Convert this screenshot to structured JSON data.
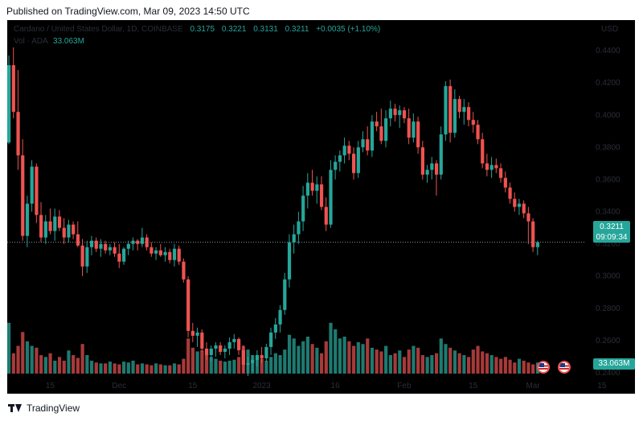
{
  "header": {
    "published": "Published on TradingView.com, Mar 09, 2023 14:50 UTC"
  },
  "legend": {
    "symbol": "Cardano / United States Dollar, 1D, COINBASE",
    "open": "0.3175",
    "high": "0.3221",
    "low": "0.3131",
    "close": "0.3211",
    "change": "+0.0035 (+1.10%)",
    "vol_label": "Vol · ADA",
    "vol_value": "33.063M"
  },
  "price_axis": {
    "currency": "USD",
    "labels": [
      "0.4400",
      "0.4200",
      "0.4000",
      "0.3800",
      "0.3600",
      "0.3400",
      "0.3200",
      "0.3000",
      "0.2800",
      "0.2600",
      "0.2400"
    ]
  },
  "last_price": {
    "value": "0.3211",
    "countdown": "09:09:34"
  },
  "volume_tag": "33.063M",
  "time_axis": {
    "labels": [
      "15",
      "Dec",
      "15",
      "2023",
      "16",
      "Feb",
      "15",
      "Mar",
      "15"
    ]
  },
  "footer": {
    "brand": "TradingView"
  },
  "colors": {
    "up": "#26a69a",
    "down": "#ef5350",
    "up_volume": "#1e7a70",
    "down_volume": "#a83a3a",
    "background": "#000000"
  },
  "chart_data": {
    "type": "candlestick",
    "title": "Cardano / United States Dollar, 1D, COINBASE",
    "ylim": [
      0.237,
      0.456
    ],
    "current_price": 0.3211,
    "candles": [
      {
        "o": 0.383,
        "h": 0.437,
        "l": 0.382,
        "c": 0.431
      },
      {
        "o": 0.431,
        "h": 0.442,
        "l": 0.398,
        "c": 0.402
      },
      {
        "o": 0.402,
        "h": 0.428,
        "l": 0.366,
        "c": 0.375
      },
      {
        "o": 0.375,
        "h": 0.385,
        "l": 0.322,
        "c": 0.325
      },
      {
        "o": 0.325,
        "h": 0.35,
        "l": 0.318,
        "c": 0.345
      },
      {
        "o": 0.345,
        "h": 0.372,
        "l": 0.34,
        "c": 0.368
      },
      {
        "o": 0.368,
        "h": 0.37,
        "l": 0.333,
        "c": 0.338
      },
      {
        "o": 0.338,
        "h": 0.346,
        "l": 0.321,
        "c": 0.324
      },
      {
        "o": 0.324,
        "h": 0.338,
        "l": 0.32,
        "c": 0.334
      },
      {
        "o": 0.334,
        "h": 0.342,
        "l": 0.326,
        "c": 0.328
      },
      {
        "o": 0.328,
        "h": 0.342,
        "l": 0.322,
        "c": 0.337
      },
      {
        "o": 0.337,
        "h": 0.341,
        "l": 0.328,
        "c": 0.33
      },
      {
        "o": 0.33,
        "h": 0.336,
        "l": 0.32,
        "c": 0.324
      },
      {
        "o": 0.324,
        "h": 0.335,
        "l": 0.321,
        "c": 0.332
      },
      {
        "o": 0.332,
        "h": 0.334,
        "l": 0.323,
        "c": 0.326
      },
      {
        "o": 0.326,
        "h": 0.334,
        "l": 0.318,
        "c": 0.319
      },
      {
        "o": 0.319,
        "h": 0.323,
        "l": 0.3,
        "c": 0.306
      },
      {
        "o": 0.306,
        "h": 0.322,
        "l": 0.302,
        "c": 0.318
      },
      {
        "o": 0.318,
        "h": 0.325,
        "l": 0.313,
        "c": 0.322
      },
      {
        "o": 0.322,
        "h": 0.324,
        "l": 0.315,
        "c": 0.317
      },
      {
        "o": 0.317,
        "h": 0.323,
        "l": 0.312,
        "c": 0.32
      },
      {
        "o": 0.32,
        "h": 0.322,
        "l": 0.314,
        "c": 0.316
      },
      {
        "o": 0.316,
        "h": 0.32,
        "l": 0.313,
        "c": 0.318
      },
      {
        "o": 0.318,
        "h": 0.321,
        "l": 0.312,
        "c": 0.314
      },
      {
        "o": 0.314,
        "h": 0.32,
        "l": 0.305,
        "c": 0.309
      },
      {
        "o": 0.309,
        "h": 0.318,
        "l": 0.307,
        "c": 0.317
      },
      {
        "o": 0.317,
        "h": 0.322,
        "l": 0.313,
        "c": 0.32
      },
      {
        "o": 0.32,
        "h": 0.324,
        "l": 0.316,
        "c": 0.322
      },
      {
        "o": 0.322,
        "h": 0.323,
        "l": 0.316,
        "c": 0.32
      },
      {
        "o": 0.32,
        "h": 0.33,
        "l": 0.318,
        "c": 0.324
      },
      {
        "o": 0.324,
        "h": 0.326,
        "l": 0.316,
        "c": 0.318
      },
      {
        "o": 0.318,
        "h": 0.321,
        "l": 0.312,
        "c": 0.314
      },
      {
        "o": 0.314,
        "h": 0.318,
        "l": 0.31,
        "c": 0.316
      },
      {
        "o": 0.316,
        "h": 0.32,
        "l": 0.312,
        "c": 0.313
      },
      {
        "o": 0.313,
        "h": 0.318,
        "l": 0.309,
        "c": 0.315
      },
      {
        "o": 0.315,
        "h": 0.317,
        "l": 0.308,
        "c": 0.31
      },
      {
        "o": 0.31,
        "h": 0.32,
        "l": 0.306,
        "c": 0.317
      },
      {
        "o": 0.317,
        "h": 0.319,
        "l": 0.307,
        "c": 0.309
      },
      {
        "o": 0.309,
        "h": 0.311,
        "l": 0.296,
        "c": 0.298
      },
      {
        "o": 0.298,
        "h": 0.3,
        "l": 0.262,
        "c": 0.266
      },
      {
        "o": 0.266,
        "h": 0.271,
        "l": 0.259,
        "c": 0.263
      },
      {
        "o": 0.263,
        "h": 0.268,
        "l": 0.256,
        "c": 0.265
      },
      {
        "o": 0.265,
        "h": 0.267,
        "l": 0.253,
        "c": 0.255
      },
      {
        "o": 0.255,
        "h": 0.259,
        "l": 0.248,
        "c": 0.251
      },
      {
        "o": 0.251,
        "h": 0.257,
        "l": 0.247,
        "c": 0.255
      },
      {
        "o": 0.255,
        "h": 0.259,
        "l": 0.25,
        "c": 0.257
      },
      {
        "o": 0.257,
        "h": 0.259,
        "l": 0.251,
        "c": 0.253
      },
      {
        "o": 0.253,
        "h": 0.257,
        "l": 0.249,
        "c": 0.255
      },
      {
        "o": 0.255,
        "h": 0.262,
        "l": 0.251,
        "c": 0.259
      },
      {
        "o": 0.259,
        "h": 0.264,
        "l": 0.255,
        "c": 0.261
      },
      {
        "o": 0.261,
        "h": 0.262,
        "l": 0.251,
        "c": 0.254
      },
      {
        "o": 0.254,
        "h": 0.257,
        "l": 0.24,
        "c": 0.245
      },
      {
        "o": 0.245,
        "h": 0.25,
        "l": 0.238,
        "c": 0.246
      },
      {
        "o": 0.246,
        "h": 0.251,
        "l": 0.241,
        "c": 0.248
      },
      {
        "o": 0.248,
        "h": 0.254,
        "l": 0.244,
        "c": 0.251
      },
      {
        "o": 0.251,
        "h": 0.256,
        "l": 0.246,
        "c": 0.249
      },
      {
        "o": 0.249,
        "h": 0.258,
        "l": 0.247,
        "c": 0.256
      },
      {
        "o": 0.256,
        "h": 0.268,
        "l": 0.251,
        "c": 0.265
      },
      {
        "o": 0.265,
        "h": 0.274,
        "l": 0.261,
        "c": 0.27
      },
      {
        "o": 0.27,
        "h": 0.282,
        "l": 0.265,
        "c": 0.279
      },
      {
        "o": 0.279,
        "h": 0.302,
        "l": 0.276,
        "c": 0.298
      },
      {
        "o": 0.298,
        "h": 0.326,
        "l": 0.293,
        "c": 0.321
      },
      {
        "o": 0.321,
        "h": 0.332,
        "l": 0.314,
        "c": 0.326
      },
      {
        "o": 0.326,
        "h": 0.34,
        "l": 0.32,
        "c": 0.334
      },
      {
        "o": 0.334,
        "h": 0.356,
        "l": 0.328,
        "c": 0.35
      },
      {
        "o": 0.35,
        "h": 0.364,
        "l": 0.342,
        "c": 0.358
      },
      {
        "o": 0.358,
        "h": 0.366,
        "l": 0.35,
        "c": 0.353
      },
      {
        "o": 0.353,
        "h": 0.362,
        "l": 0.345,
        "c": 0.357
      },
      {
        "o": 0.357,
        "h": 0.362,
        "l": 0.341,
        "c": 0.343
      },
      {
        "o": 0.343,
        "h": 0.349,
        "l": 0.328,
        "c": 0.332
      },
      {
        "o": 0.332,
        "h": 0.372,
        "l": 0.33,
        "c": 0.366
      },
      {
        "o": 0.366,
        "h": 0.375,
        "l": 0.36,
        "c": 0.371
      },
      {
        "o": 0.371,
        "h": 0.378,
        "l": 0.365,
        "c": 0.375
      },
      {
        "o": 0.375,
        "h": 0.386,
        "l": 0.37,
        "c": 0.381
      },
      {
        "o": 0.381,
        "h": 0.384,
        "l": 0.372,
        "c": 0.376
      },
      {
        "o": 0.376,
        "h": 0.38,
        "l": 0.36,
        "c": 0.364
      },
      {
        "o": 0.364,
        "h": 0.384,
        "l": 0.361,
        "c": 0.38
      },
      {
        "o": 0.38,
        "h": 0.39,
        "l": 0.377,
        "c": 0.385
      },
      {
        "o": 0.385,
        "h": 0.393,
        "l": 0.375,
        "c": 0.378
      },
      {
        "o": 0.378,
        "h": 0.4,
        "l": 0.374,
        "c": 0.396
      },
      {
        "o": 0.396,
        "h": 0.402,
        "l": 0.39,
        "c": 0.393
      },
      {
        "o": 0.393,
        "h": 0.404,
        "l": 0.382,
        "c": 0.384
      },
      {
        "o": 0.384,
        "h": 0.403,
        "l": 0.38,
        "c": 0.398
      },
      {
        "o": 0.398,
        "h": 0.409,
        "l": 0.393,
        "c": 0.404
      },
      {
        "o": 0.404,
        "h": 0.407,
        "l": 0.396,
        "c": 0.4
      },
      {
        "o": 0.4,
        "h": 0.406,
        "l": 0.392,
        "c": 0.403
      },
      {
        "o": 0.403,
        "h": 0.405,
        "l": 0.395,
        "c": 0.398
      },
      {
        "o": 0.398,
        "h": 0.404,
        "l": 0.382,
        "c": 0.386
      },
      {
        "o": 0.386,
        "h": 0.401,
        "l": 0.383,
        "c": 0.396
      },
      {
        "o": 0.396,
        "h": 0.399,
        "l": 0.376,
        "c": 0.38
      },
      {
        "o": 0.38,
        "h": 0.384,
        "l": 0.36,
        "c": 0.363
      },
      {
        "o": 0.363,
        "h": 0.369,
        "l": 0.358,
        "c": 0.366
      },
      {
        "o": 0.366,
        "h": 0.374,
        "l": 0.36,
        "c": 0.37
      },
      {
        "o": 0.37,
        "h": 0.372,
        "l": 0.35,
        "c": 0.363
      },
      {
        "o": 0.363,
        "h": 0.393,
        "l": 0.36,
        "c": 0.388
      },
      {
        "o": 0.388,
        "h": 0.421,
        "l": 0.384,
        "c": 0.418
      },
      {
        "o": 0.418,
        "h": 0.422,
        "l": 0.383,
        "c": 0.389
      },
      {
        "o": 0.389,
        "h": 0.416,
        "l": 0.386,
        "c": 0.41
      },
      {
        "o": 0.41,
        "h": 0.412,
        "l": 0.398,
        "c": 0.402
      },
      {
        "o": 0.402,
        "h": 0.41,
        "l": 0.394,
        "c": 0.405
      },
      {
        "o": 0.405,
        "h": 0.408,
        "l": 0.393,
        "c": 0.397
      },
      {
        "o": 0.397,
        "h": 0.402,
        "l": 0.389,
        "c": 0.394
      },
      {
        "o": 0.394,
        "h": 0.397,
        "l": 0.382,
        "c": 0.385
      },
      {
        "o": 0.385,
        "h": 0.389,
        "l": 0.367,
        "c": 0.37
      },
      {
        "o": 0.37,
        "h": 0.376,
        "l": 0.362,
        "c": 0.366
      },
      {
        "o": 0.366,
        "h": 0.374,
        "l": 0.361,
        "c": 0.369
      },
      {
        "o": 0.369,
        "h": 0.373,
        "l": 0.364,
        "c": 0.367
      },
      {
        "o": 0.367,
        "h": 0.37,
        "l": 0.358,
        "c": 0.361
      },
      {
        "o": 0.361,
        "h": 0.365,
        "l": 0.352,
        "c": 0.355
      },
      {
        "o": 0.355,
        "h": 0.358,
        "l": 0.345,
        "c": 0.348
      },
      {
        "o": 0.348,
        "h": 0.352,
        "l": 0.34,
        "c": 0.343
      },
      {
        "o": 0.343,
        "h": 0.348,
        "l": 0.338,
        "c": 0.345
      },
      {
        "o": 0.345,
        "h": 0.347,
        "l": 0.336,
        "c": 0.339
      },
      {
        "o": 0.339,
        "h": 0.343,
        "l": 0.32,
        "c": 0.334
      },
      {
        "o": 0.334,
        "h": 0.336,
        "l": 0.315,
        "c": 0.318
      },
      {
        "o": 0.318,
        "h": 0.322,
        "l": 0.313,
        "c": 0.321
      }
    ],
    "volume_heights": [
      0.55,
      0.22,
      0.3,
      0.45,
      0.35,
      0.3,
      0.28,
      0.2,
      0.18,
      0.22,
      0.14,
      0.18,
      0.14,
      0.25,
      0.2,
      0.17,
      0.32,
      0.2,
      0.14,
      0.12,
      0.11,
      0.11,
      0.13,
      0.11,
      0.1,
      0.13,
      0.12,
      0.14,
      0.1,
      0.11,
      0.1,
      0.09,
      0.11,
      0.1,
      0.09,
      0.09,
      0.11,
      0.1,
      0.16,
      0.38,
      0.28,
      0.24,
      0.25,
      0.2,
      0.18,
      0.16,
      0.14,
      0.13,
      0.14,
      0.15,
      0.18,
      0.3,
      0.26,
      0.2,
      0.18,
      0.16,
      0.14,
      0.18,
      0.22,
      0.2,
      0.26,
      0.42,
      0.38,
      0.3,
      0.35,
      0.4,
      0.32,
      0.28,
      0.22,
      0.35,
      0.55,
      0.48,
      0.38,
      0.4,
      0.35,
      0.3,
      0.34,
      0.32,
      0.38,
      0.28,
      0.26,
      0.24,
      0.3,
      0.2,
      0.22,
      0.25,
      0.18,
      0.26,
      0.3,
      0.28,
      0.2,
      0.18,
      0.2,
      0.22,
      0.38,
      0.32,
      0.28,
      0.25,
      0.22,
      0.2,
      0.18,
      0.26,
      0.3,
      0.24,
      0.22,
      0.2,
      0.18,
      0.16,
      0.18,
      0.15,
      0.12,
      0.16,
      0.14,
      0.12,
      0.1,
      0.12
    ],
    "last_volume": 33.063
  }
}
